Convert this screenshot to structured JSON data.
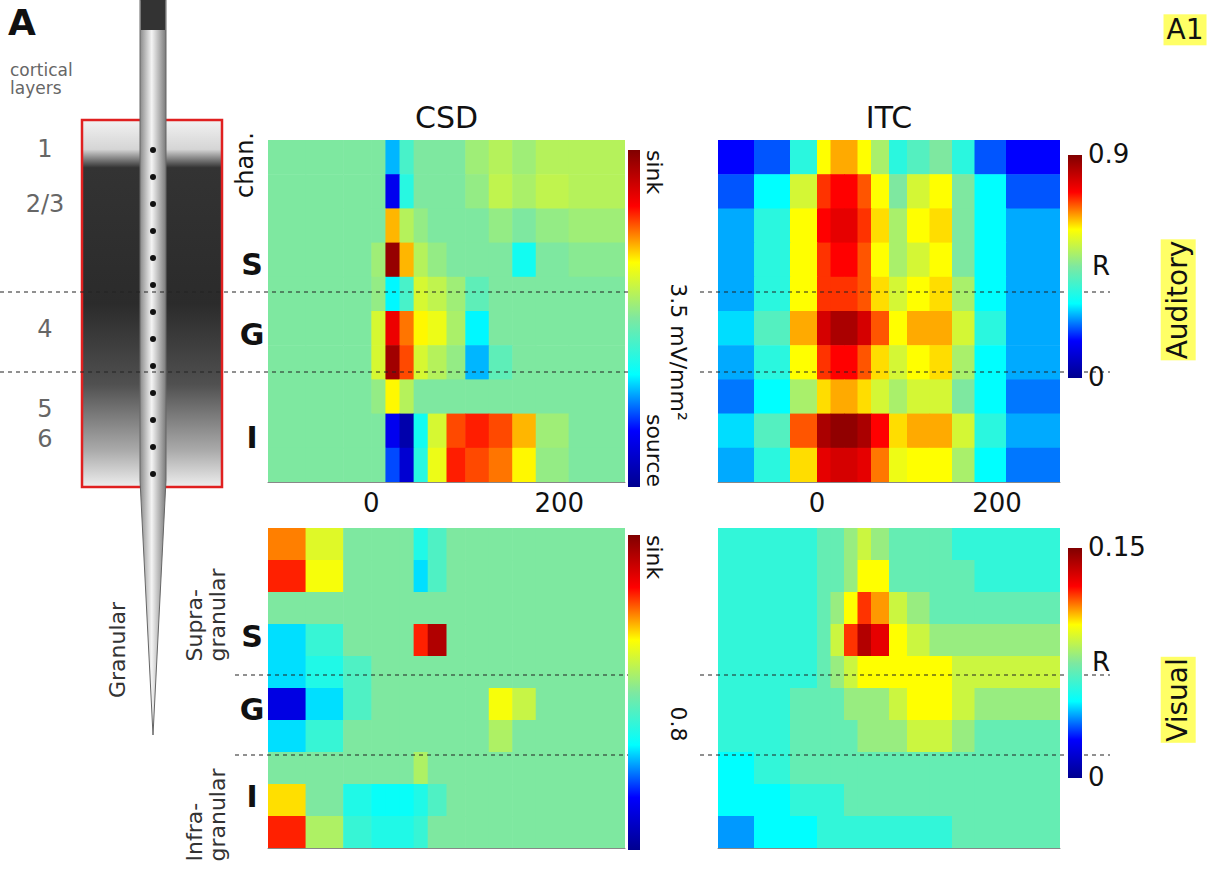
{
  "figure": {
    "panel_letter": "A",
    "area": "A1",
    "layers_title": "cortical layers",
    "layers": [
      "1",
      "2/3",
      "4",
      "5",
      "6"
    ],
    "channel_label": "chan.",
    "groups": [
      "S",
      "G",
      "I"
    ],
    "group_names": [
      "Supra-granular",
      "Granular",
      "Infra-granular"
    ],
    "conditions": [
      "Auditory",
      "Visual"
    ]
  },
  "chart_data": [
    {
      "type": "heatmap",
      "title": "CSD",
      "xlim": [
        -110,
        270
      ],
      "xticks": [
        0,
        200
      ],
      "tick_labels": "x",
      "time_bins": [
        -110,
        -70,
        -30,
        0,
        15,
        30,
        45,
        60,
        80,
        100,
        125,
        150,
        175,
        210,
        270
      ],
      "cells": [
        [
          0,
          0,
          0,
          0,
          -1.5,
          -0.5,
          0,
          0,
          0,
          0.3,
          0.5,
          0.3,
          0.5,
          0.5
        ],
        [
          0,
          0,
          0,
          0,
          -2.5,
          -0.8,
          0,
          0,
          0,
          0.2,
          0.6,
          0.4,
          0.6,
          0.5
        ],
        [
          0,
          0,
          0,
          0,
          1.5,
          0.5,
          0.2,
          0,
          0,
          0,
          0.2,
          0,
          0.2,
          0.3
        ],
        [
          0,
          0,
          0,
          0.3,
          3.3,
          1.5,
          0.5,
          0.2,
          0,
          0,
          0,
          -1,
          0,
          0.1
        ],
        [
          0,
          0,
          0,
          0.2,
          -1.2,
          -0.5,
          0.8,
          0.6,
          0.3,
          -0.3,
          0,
          0,
          0,
          0
        ],
        [
          0,
          0,
          0,
          0.8,
          2.5,
          1.8,
          1.2,
          1,
          0.4,
          -1.2,
          0,
          0,
          0,
          0
        ],
        [
          0,
          0,
          0,
          0.8,
          3.2,
          2,
          0.8,
          0.5,
          0.2,
          -1.5,
          -0.3,
          0,
          0,
          0
        ],
        [
          0,
          0,
          0,
          0.2,
          1.2,
          0.5,
          0,
          0,
          0,
          0,
          0,
          0,
          0,
          0
        ],
        [
          0,
          0,
          0,
          0,
          -2.5,
          -3.2,
          -1,
          0.8,
          2,
          2.2,
          2,
          1.5,
          0.3,
          0
        ],
        [
          0,
          0,
          0,
          0,
          -2,
          -2.8,
          -0.8,
          1,
          2.2,
          2,
          1.8,
          1.2,
          0.2,
          0
        ]
      ],
      "colorbar": {
        "range": [
          -3.5,
          3.5
        ],
        "top_label": "sink",
        "bottom_label": "source",
        "scale_label": "3.5 mV/mm²"
      }
    },
    {
      "type": "heatmap",
      "title": "ITC",
      "xlim": [
        -110,
        270
      ],
      "xticks": [
        0,
        200
      ],
      "tick_labels": "x",
      "time_bins": [
        -110,
        -70,
        -30,
        0,
        15,
        30,
        45,
        60,
        80,
        100,
        125,
        150,
        175,
        210,
        270
      ],
      "cells": [
        [
          0.15,
          0.2,
          0.35,
          0.6,
          0.65,
          0.65,
          0.6,
          0.5,
          0.35,
          0.4,
          0.45,
          0.35,
          0.2,
          0.15
        ],
        [
          0.2,
          0.3,
          0.55,
          0.72,
          0.75,
          0.75,
          0.7,
          0.6,
          0.45,
          0.55,
          0.6,
          0.45,
          0.3,
          0.2
        ],
        [
          0.25,
          0.35,
          0.6,
          0.75,
          0.78,
          0.78,
          0.72,
          0.62,
          0.5,
          0.6,
          0.62,
          0.45,
          0.3,
          0.25
        ],
        [
          0.25,
          0.35,
          0.6,
          0.72,
          0.75,
          0.75,
          0.7,
          0.6,
          0.5,
          0.55,
          0.6,
          0.45,
          0.3,
          0.25
        ],
        [
          0.25,
          0.35,
          0.6,
          0.72,
          0.72,
          0.72,
          0.7,
          0.62,
          0.55,
          0.6,
          0.62,
          0.5,
          0.3,
          0.25
        ],
        [
          0.28,
          0.4,
          0.65,
          0.8,
          0.85,
          0.85,
          0.8,
          0.7,
          0.6,
          0.65,
          0.65,
          0.55,
          0.35,
          0.25
        ],
        [
          0.25,
          0.35,
          0.6,
          0.72,
          0.75,
          0.75,
          0.7,
          0.62,
          0.55,
          0.6,
          0.62,
          0.5,
          0.3,
          0.25
        ],
        [
          0.22,
          0.3,
          0.5,
          0.62,
          0.65,
          0.65,
          0.62,
          0.55,
          0.5,
          0.55,
          0.55,
          0.45,
          0.3,
          0.22
        ],
        [
          0.28,
          0.4,
          0.7,
          0.85,
          0.88,
          0.88,
          0.85,
          0.75,
          0.62,
          0.65,
          0.65,
          0.55,
          0.35,
          0.25
        ],
        [
          0.25,
          0.35,
          0.62,
          0.78,
          0.8,
          0.8,
          0.78,
          0.68,
          0.58,
          0.6,
          0.6,
          0.5,
          0.3,
          0.22
        ]
      ],
      "colorbar": {
        "range": [
          0,
          0.9
        ],
        "ticks": [
          0,
          0.9
        ],
        "label": "R"
      }
    },
    {
      "type": "heatmap",
      "xlim": [
        -110,
        270
      ],
      "tick_labels": false,
      "time_bins": [
        -110,
        -70,
        -30,
        0,
        15,
        30,
        45,
        60,
        80,
        100,
        125,
        150,
        175,
        210,
        270
      ],
      "cells": [
        [
          0.4,
          0.2,
          0,
          0,
          0,
          0,
          -0.2,
          -0.1,
          0,
          0,
          0,
          0,
          0,
          0
        ],
        [
          0.5,
          0.25,
          0,
          0,
          0,
          0,
          -0.3,
          -0.1,
          0,
          0,
          0,
          0,
          0,
          0
        ],
        [
          0,
          0,
          0,
          0,
          0,
          0,
          0,
          0,
          0,
          0,
          0,
          0,
          0,
          0
        ],
        [
          -0.3,
          -0.15,
          0,
          0,
          0,
          0,
          0.5,
          0.7,
          0,
          0,
          0,
          0,
          0,
          0
        ],
        [
          -0.3,
          -0.2,
          -0.1,
          0,
          0,
          0,
          0,
          0,
          0,
          0,
          0,
          0,
          0,
          0
        ],
        [
          -0.6,
          -0.3,
          -0.1,
          0,
          0,
          0,
          0,
          0,
          0,
          0,
          0.25,
          0.15,
          0,
          0
        ],
        [
          -0.3,
          -0.15,
          0,
          0,
          0,
          0,
          0,
          0,
          0,
          0,
          0.1,
          0,
          0,
          0
        ],
        [
          0,
          0,
          0,
          0,
          0,
          0,
          0.1,
          0,
          0,
          0,
          0,
          0,
          0,
          0
        ],
        [
          0.3,
          0,
          -0.2,
          -0.25,
          -0.25,
          -0.25,
          -0.2,
          -0.1,
          0,
          0,
          0,
          0,
          0,
          0
        ],
        [
          0.5,
          0.1,
          -0.15,
          -0.2,
          -0.2,
          -0.2,
          -0.15,
          0,
          0,
          0,
          0,
          0,
          0,
          0
        ]
      ],
      "colorbar": {
        "range": [
          -0.8,
          0.8
        ],
        "top_label": "sink",
        "scale_label": "0.8"
      }
    },
    {
      "type": "heatmap",
      "xlim": [
        -110,
        270
      ],
      "tick_labels": false,
      "time_bins": [
        -110,
        -70,
        -30,
        0,
        15,
        30,
        45,
        60,
        80,
        100,
        125,
        150,
        175,
        210,
        270
      ],
      "cells": [
        [
          0.06,
          0.06,
          0.06,
          0.07,
          0.07,
          0.08,
          0.09,
          0.08,
          0.07,
          0.07,
          0.07,
          0.06,
          0.06,
          0.06
        ],
        [
          0.06,
          0.06,
          0.06,
          0.07,
          0.07,
          0.08,
          0.1,
          0.1,
          0.07,
          0.07,
          0.07,
          0.07,
          0.06,
          0.06
        ],
        [
          0.06,
          0.06,
          0.06,
          0.07,
          0.08,
          0.1,
          0.12,
          0.11,
          0.09,
          0.08,
          0.07,
          0.07,
          0.07,
          0.07
        ],
        [
          0.06,
          0.06,
          0.06,
          0.07,
          0.09,
          0.12,
          0.14,
          0.13,
          0.1,
          0.09,
          0.08,
          0.08,
          0.08,
          0.08
        ],
        [
          0.06,
          0.06,
          0.06,
          0.07,
          0.08,
          0.09,
          0.1,
          0.1,
          0.1,
          0.1,
          0.1,
          0.09,
          0.09,
          0.09
        ],
        [
          0.06,
          0.06,
          0.07,
          0.07,
          0.07,
          0.08,
          0.08,
          0.08,
          0.09,
          0.1,
          0.1,
          0.09,
          0.08,
          0.08
        ],
        [
          0.06,
          0.06,
          0.07,
          0.07,
          0.07,
          0.07,
          0.08,
          0.08,
          0.08,
          0.09,
          0.09,
          0.08,
          0.07,
          0.07
        ],
        [
          0.05,
          0.06,
          0.07,
          0.07,
          0.07,
          0.07,
          0.07,
          0.07,
          0.07,
          0.07,
          0.07,
          0.07,
          0.07,
          0.07
        ],
        [
          0.05,
          0.05,
          0.06,
          0.06,
          0.06,
          0.07,
          0.07,
          0.07,
          0.07,
          0.07,
          0.07,
          0.07,
          0.07,
          0.07
        ],
        [
          0.04,
          0.05,
          0.05,
          0.06,
          0.06,
          0.06,
          0.06,
          0.06,
          0.06,
          0.06,
          0.06,
          0.07,
          0.07,
          0.07
        ]
      ],
      "colorbar": {
        "range": [
          0,
          0.15
        ],
        "ticks": [
          0,
          0.15
        ],
        "label": "R"
      }
    }
  ]
}
